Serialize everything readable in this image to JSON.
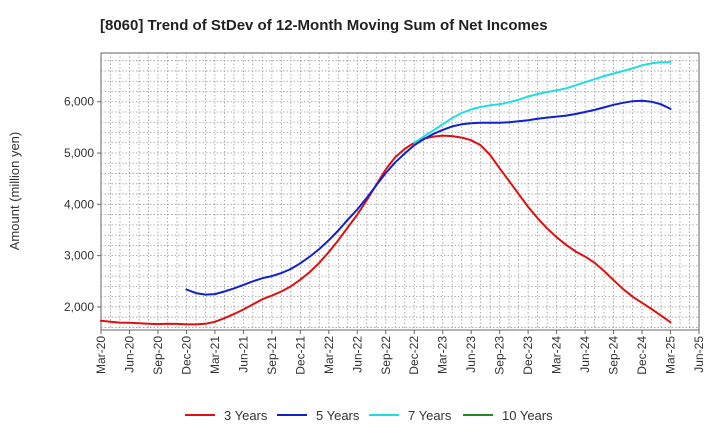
{
  "chart_data": {
    "type": "line",
    "title": "[8060]  Trend of StDev of 12-Month Moving Sum of Net Incomes",
    "xlabel": "",
    "ylabel": "Amount (million yen)",
    "x_ticks": [
      "Mar-20",
      "Jun-20",
      "Sep-20",
      "Dec-20",
      "Mar-21",
      "Jun-21",
      "Sep-21",
      "Dec-21",
      "Mar-22",
      "Jun-22",
      "Sep-22",
      "Dec-22",
      "Mar-23",
      "Jun-23",
      "Sep-23",
      "Dec-23",
      "Mar-24",
      "Jun-24",
      "Sep-24",
      "Dec-24",
      "Mar-25",
      "Jun-25"
    ],
    "y_ticks": [
      2000,
      3000,
      4000,
      5000,
      6000
    ],
    "y_tick_labels": [
      "2,000",
      "3,000",
      "4,000",
      "5,000",
      "6,000"
    ],
    "ylim": [
      1550,
      6950
    ],
    "grid": true,
    "legend_position": "bottom",
    "series": [
      {
        "name": "3 Years",
        "color": "#dd1111",
        "points": [
          [
            "Mar-20",
            1730
          ],
          [
            "Apr-20",
            1710
          ],
          [
            "May-20",
            1695
          ],
          [
            "Jun-20",
            1690
          ],
          [
            "Jul-20",
            1680
          ],
          [
            "Aug-20",
            1670
          ],
          [
            "Sep-20",
            1665
          ],
          [
            "Oct-20",
            1670
          ],
          [
            "Nov-20",
            1668
          ],
          [
            "Dec-20",
            1660
          ],
          [
            "Jan-21",
            1660
          ],
          [
            "Feb-21",
            1670
          ],
          [
            "Mar-21",
            1710
          ],
          [
            "Apr-21",
            1780
          ],
          [
            "May-21",
            1860
          ],
          [
            "Jun-21",
            1950
          ],
          [
            "Jul-21",
            2050
          ],
          [
            "Aug-21",
            2150
          ],
          [
            "Sep-21",
            2220
          ],
          [
            "Oct-21",
            2300
          ],
          [
            "Nov-21",
            2400
          ],
          [
            "Dec-21",
            2530
          ],
          [
            "Jan-22",
            2680
          ],
          [
            "Feb-22",
            2860
          ],
          [
            "Mar-22",
            3070
          ],
          [
            "Apr-22",
            3300
          ],
          [
            "May-22",
            3550
          ],
          [
            "Jun-22",
            3800
          ],
          [
            "Jul-22",
            4080
          ],
          [
            "Aug-22",
            4380
          ],
          [
            "Sep-22",
            4680
          ],
          [
            "Oct-22",
            4920
          ],
          [
            "Nov-22",
            5080
          ],
          [
            "Dec-22",
            5200
          ],
          [
            "Jan-23",
            5280
          ],
          [
            "Feb-23",
            5320
          ],
          [
            "Mar-23",
            5340
          ],
          [
            "Apr-23",
            5330
          ],
          [
            "May-23",
            5300
          ],
          [
            "Jun-23",
            5250
          ],
          [
            "Jul-23",
            5150
          ],
          [
            "Aug-23",
            4960
          ],
          [
            "Sep-23",
            4700
          ],
          [
            "Oct-23",
            4450
          ],
          [
            "Nov-23",
            4200
          ],
          [
            "Dec-23",
            3950
          ],
          [
            "Jan-24",
            3730
          ],
          [
            "Feb-24",
            3530
          ],
          [
            "Mar-24",
            3360
          ],
          [
            "Apr-24",
            3210
          ],
          [
            "May-24",
            3080
          ],
          [
            "Jun-24",
            2980
          ],
          [
            "Jul-24",
            2860
          ],
          [
            "Aug-24",
            2700
          ],
          [
            "Sep-24",
            2520
          ],
          [
            "Oct-24",
            2350
          ],
          [
            "Nov-24",
            2200
          ],
          [
            "Dec-24",
            2080
          ],
          [
            "Jan-25",
            1960
          ],
          [
            "Feb-25",
            1830
          ],
          [
            "Mar-25",
            1700
          ]
        ]
      },
      {
        "name": "5 Years",
        "color": "#1122cc",
        "points": [
          [
            "Dec-20",
            2340
          ],
          [
            "Jan-21",
            2270
          ],
          [
            "Feb-21",
            2240
          ],
          [
            "Mar-21",
            2250
          ],
          [
            "Apr-21",
            2300
          ],
          [
            "May-21",
            2360
          ],
          [
            "Jun-21",
            2430
          ],
          [
            "Jul-21",
            2500
          ],
          [
            "Aug-21",
            2560
          ],
          [
            "Sep-21",
            2600
          ],
          [
            "Oct-21",
            2660
          ],
          [
            "Nov-21",
            2740
          ],
          [
            "Dec-21",
            2850
          ],
          [
            "Jan-22",
            2980
          ],
          [
            "Feb-22",
            3130
          ],
          [
            "Mar-22",
            3300
          ],
          [
            "Apr-22",
            3490
          ],
          [
            "May-22",
            3700
          ],
          [
            "Jun-22",
            3900
          ],
          [
            "Jul-22",
            4130
          ],
          [
            "Aug-22",
            4370
          ],
          [
            "Sep-22",
            4610
          ],
          [
            "Oct-22",
            4820
          ],
          [
            "Nov-22",
            4990
          ],
          [
            "Dec-22",
            5150
          ],
          [
            "Jan-23",
            5270
          ],
          [
            "Feb-23",
            5370
          ],
          [
            "Mar-23",
            5450
          ],
          [
            "Apr-23",
            5520
          ],
          [
            "May-23",
            5560
          ],
          [
            "Jun-23",
            5580
          ],
          [
            "Jul-23",
            5590
          ],
          [
            "Aug-23",
            5590
          ],
          [
            "Sep-23",
            5590
          ],
          [
            "Oct-23",
            5600
          ],
          [
            "Nov-23",
            5620
          ],
          [
            "Dec-23",
            5640
          ],
          [
            "Jan-24",
            5670
          ],
          [
            "Feb-24",
            5690
          ],
          [
            "Mar-24",
            5710
          ],
          [
            "Apr-24",
            5730
          ],
          [
            "May-24",
            5760
          ],
          [
            "Jun-24",
            5800
          ],
          [
            "Jul-24",
            5840
          ],
          [
            "Aug-24",
            5890
          ],
          [
            "Sep-24",
            5940
          ],
          [
            "Oct-24",
            5980
          ],
          [
            "Nov-24",
            6010
          ],
          [
            "Dec-24",
            6020
          ],
          [
            "Jan-25",
            6000
          ],
          [
            "Feb-25",
            5950
          ],
          [
            "Mar-25",
            5860
          ]
        ]
      },
      {
        "name": "7 Years",
        "color": "#22dddd",
        "points": [
          [
            "Dec-22",
            5200
          ],
          [
            "Jan-23",
            5320
          ],
          [
            "Feb-23",
            5440
          ],
          [
            "Mar-23",
            5560
          ],
          [
            "Apr-23",
            5680
          ],
          [
            "May-23",
            5780
          ],
          [
            "Jun-23",
            5850
          ],
          [
            "Jul-23",
            5900
          ],
          [
            "Aug-23",
            5930
          ],
          [
            "Sep-23",
            5950
          ],
          [
            "Oct-23",
            5990
          ],
          [
            "Nov-23",
            6040
          ],
          [
            "Dec-23",
            6100
          ],
          [
            "Jan-24",
            6150
          ],
          [
            "Feb-24",
            6190
          ],
          [
            "Mar-24",
            6220
          ],
          [
            "Apr-24",
            6260
          ],
          [
            "May-24",
            6320
          ],
          [
            "Jun-24",
            6380
          ],
          [
            "Jul-24",
            6440
          ],
          [
            "Aug-24",
            6500
          ],
          [
            "Sep-24",
            6550
          ],
          [
            "Oct-24",
            6600
          ],
          [
            "Nov-24",
            6650
          ],
          [
            "Dec-24",
            6710
          ],
          [
            "Jan-25",
            6750
          ],
          [
            "Feb-25",
            6770
          ],
          [
            "Mar-25",
            6770
          ]
        ]
      },
      {
        "name": "10 Years",
        "color": "#228822",
        "points": []
      }
    ]
  }
}
